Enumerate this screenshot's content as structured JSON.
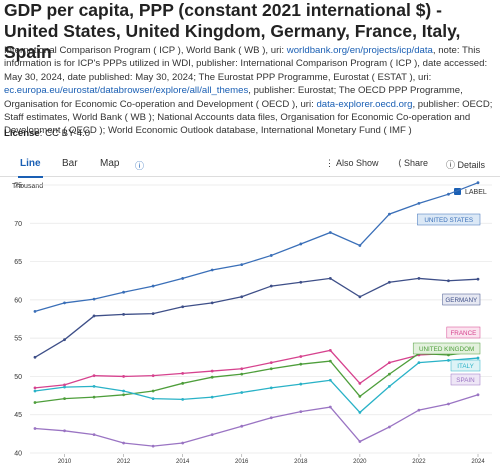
{
  "header": {
    "title": "GDP per capita, PPP (constant 2021 international $) - United States, United Kingdom, Germany, France, Italy, Spain",
    "description": [
      "International Comparison Program ( ICP ), World Bank ( WB ), uri: ",
      "worldbank.org/en/projects/icp/data",
      ", note: This information is for ICP's PPPs utilized in WDI, publisher: International Comparison Program ( ICP ), date accessed: May 30, 2024, date published: May 30, 2024; The Eurostat PPP Programme, Eurostat ( ESTAT ), uri: ",
      "ec.europa.eu/eurostat/databrowser/explore/all/all_themes",
      ", publisher: Eurostat; The OECD PPP Programme, Organisation for Economic Co-operation and Development ( OECD ), uri: ",
      "data-explorer.oecd.org",
      ", publisher: OECD; Staff estimates, World Bank ( WB ); National Accounts data files, Organisation for Economic Co-operation and Development ( OECD ); World Economic Outlook database, International Monetary Fund ( IMF )"
    ],
    "license_label": "License",
    "license_value": ": CC BY-4.0"
  },
  "tabs": [
    "Line",
    "Bar",
    "Map"
  ],
  "buttons": [
    "Also Show",
    "Share",
    "Details"
  ],
  "chart_data": {
    "type": "line",
    "y_unit": "Thousand",
    "label_toggle": "LABEL",
    "x": [
      2009,
      2010,
      2011,
      2012,
      2013,
      2014,
      2015,
      2016,
      2017,
      2018,
      2019,
      2020,
      2021,
      2022,
      2023,
      2024
    ],
    "xlim": [
      2009,
      2024
    ],
    "xticks": [
      2010,
      2012,
      2014,
      2016,
      2018,
      2020,
      2022,
      2024
    ],
    "ylim": [
      40,
      75
    ],
    "yticks": [
      40,
      45,
      50,
      55,
      60,
      65,
      70,
      75
    ],
    "grid": true,
    "series": [
      {
        "name": "UNITED STATES",
        "color": "#3a6fb8",
        "values": [
          58.5,
          59.6,
          60.1,
          61,
          61.8,
          62.8,
          63.9,
          64.6,
          65.8,
          67.3,
          68.8,
          67.1,
          71.2,
          72.6,
          73.8,
          75.3
        ]
      },
      {
        "name": "GERMANY",
        "color": "#3e4f88",
        "values": [
          52.5,
          54.8,
          57.9,
          58.1,
          58.2,
          59.1,
          59.6,
          60.4,
          61.8,
          62.3,
          62.8,
          60.4,
          62.3,
          62.8,
          62.5,
          62.7
        ]
      },
      {
        "name": "FRANCE",
        "color": "#d6428e",
        "values": [
          48.5,
          48.9,
          50.1,
          50,
          50.1,
          50.4,
          50.7,
          51,
          51.8,
          52.6,
          53.4,
          49.1,
          51.8,
          52.8,
          53,
          53.3
        ]
      },
      {
        "name": "UNITED KINGDOM",
        "color": "#4e9e3b",
        "values": [
          46.6,
          47.1,
          47.3,
          47.6,
          48.1,
          49.1,
          49.9,
          50.3,
          51,
          51.6,
          52,
          47.4,
          50.3,
          53,
          52.8,
          53.3
        ]
      },
      {
        "name": "ITALY",
        "color": "#29b2c7",
        "values": [
          48.1,
          48.6,
          48.7,
          48.1,
          47.1,
          47,
          47.3,
          47.9,
          48.5,
          49,
          49.5,
          45.3,
          48.7,
          51.8,
          52.1,
          52.4
        ]
      },
      {
        "name": "SPAIN",
        "color": "#9a74c3",
        "values": [
          43.2,
          42.9,
          42.4,
          41.3,
          40.9,
          41.3,
          42.4,
          43.5,
          44.6,
          45.4,
          46,
          41.5,
          43.4,
          45.6,
          46.4,
          47.6
        ]
      }
    ]
  }
}
